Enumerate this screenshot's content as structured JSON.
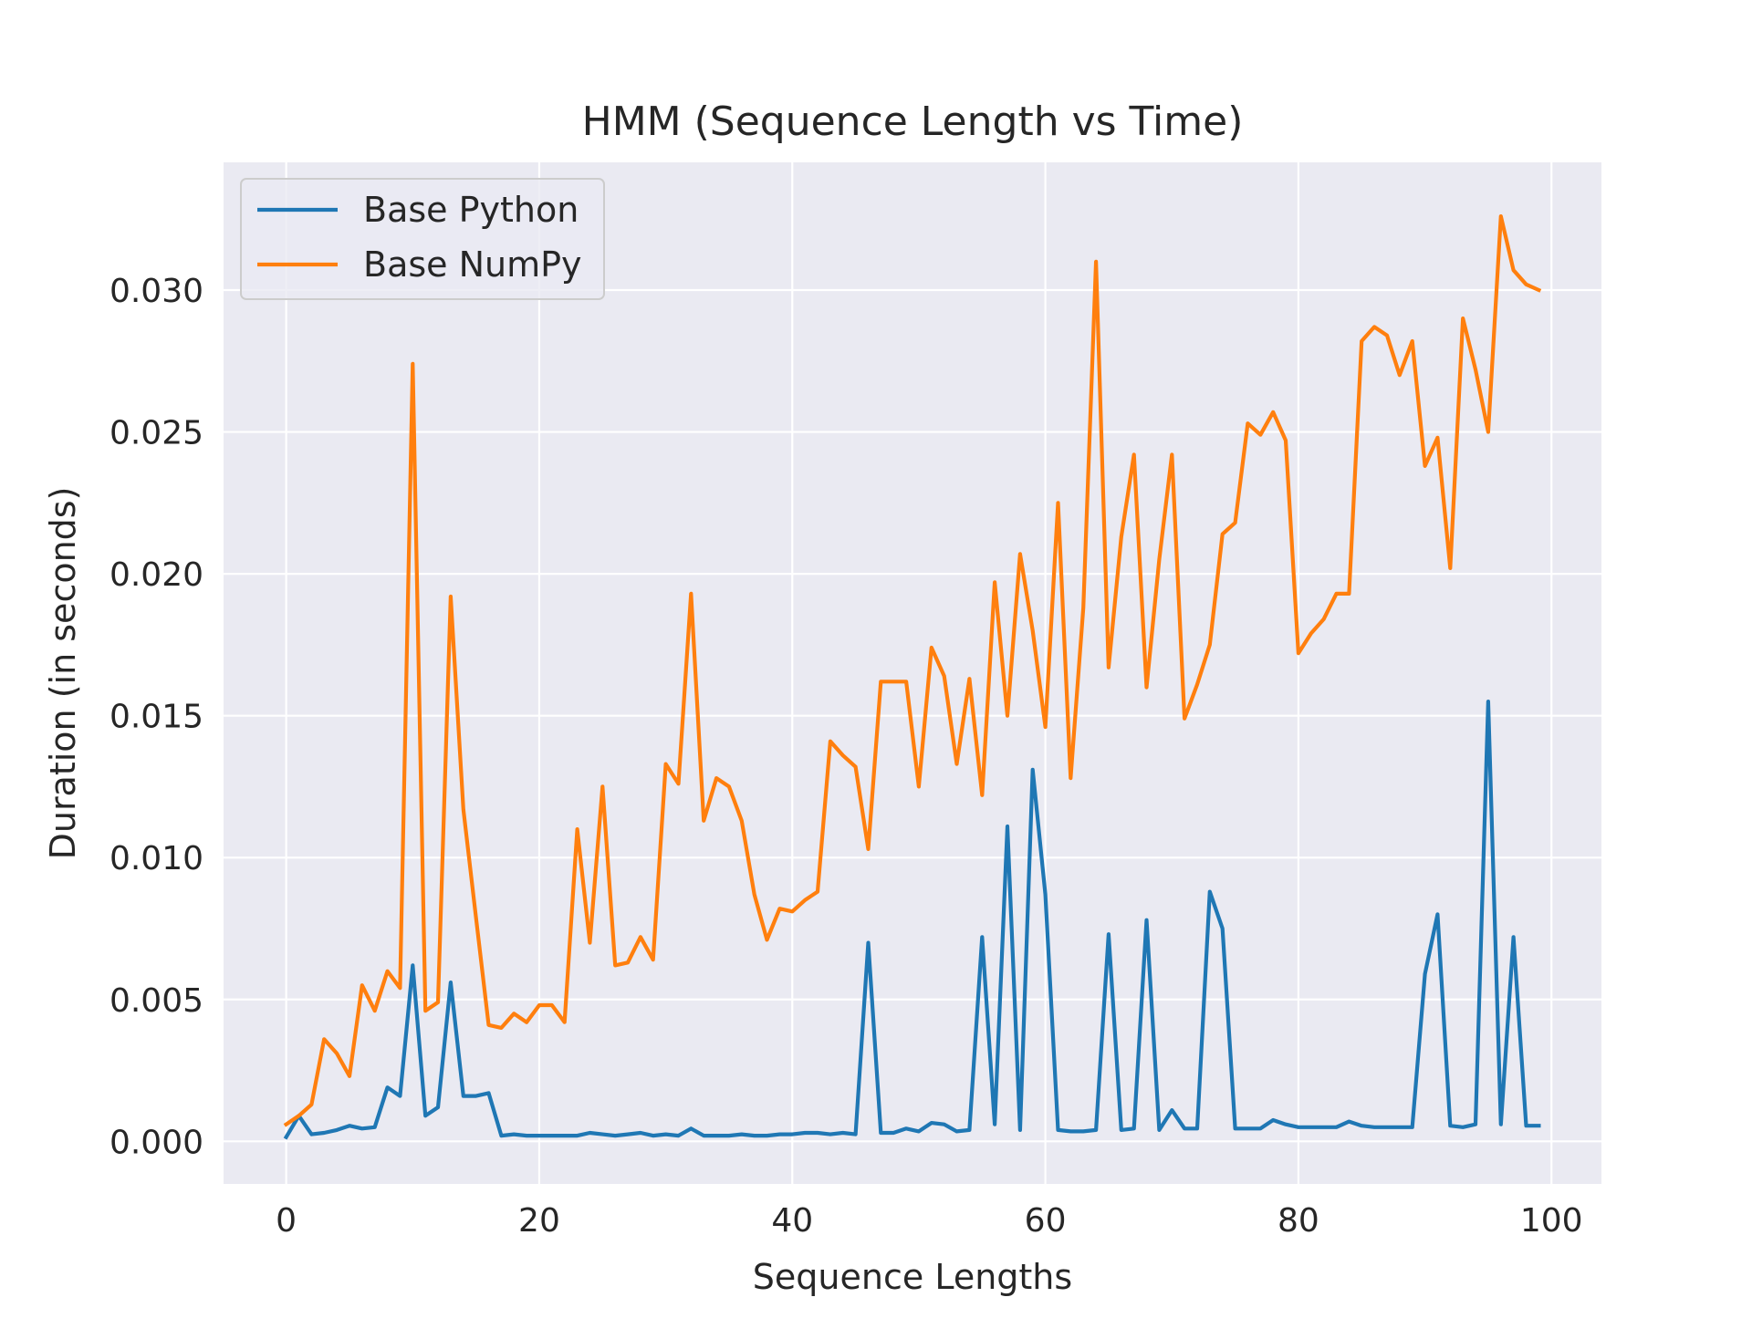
{
  "chart_data": {
    "type": "line",
    "title": "HMM (Sequence Length vs Time)",
    "xlabel": "Sequence Lengths",
    "ylabel": "Duration (in seconds)",
    "xlim": [
      -4.95,
      103.95
    ],
    "ylim": [
      -0.0015,
      0.0345
    ],
    "x_ticks": [
      0,
      20,
      40,
      60,
      80,
      100
    ],
    "x_tick_labels": [
      "0",
      "20",
      "40",
      "60",
      "80",
      "100"
    ],
    "y_ticks": [
      0.0,
      0.005,
      0.01,
      0.015,
      0.02,
      0.025,
      0.03
    ],
    "y_tick_labels": [
      "0.000",
      "0.005",
      "0.010",
      "0.015",
      "0.020",
      "0.025",
      "0.030"
    ],
    "grid": true,
    "legend_position": "upper-left",
    "colors": {
      "plot_bg": "#eaeaf2",
      "grid": "#ffffff",
      "legend_border": "#cccccc"
    },
    "x": [
      0,
      1,
      2,
      3,
      4,
      5,
      6,
      7,
      8,
      9,
      10,
      11,
      12,
      13,
      14,
      15,
      16,
      17,
      18,
      19,
      20,
      21,
      22,
      23,
      24,
      25,
      26,
      27,
      28,
      29,
      30,
      31,
      32,
      33,
      34,
      35,
      36,
      37,
      38,
      39,
      40,
      41,
      42,
      43,
      44,
      45,
      46,
      47,
      48,
      49,
      50,
      51,
      52,
      53,
      54,
      55,
      56,
      57,
      58,
      59,
      60,
      61,
      62,
      63,
      64,
      65,
      66,
      67,
      68,
      69,
      70,
      71,
      72,
      73,
      74,
      75,
      76,
      77,
      78,
      79,
      80,
      81,
      82,
      83,
      84,
      85,
      86,
      87,
      88,
      89,
      90,
      91,
      92,
      93,
      94,
      95,
      96,
      97,
      98,
      99
    ],
    "series": [
      {
        "name": "Base Python",
        "color": "#1f77b4",
        "values": [
          0.00015,
          0.0009,
          0.00025,
          0.0003,
          0.0004,
          0.00055,
          0.00045,
          0.0005,
          0.0019,
          0.0016,
          0.0062,
          0.0009,
          0.0012,
          0.0056,
          0.0016,
          0.0016,
          0.0017,
          0.0002,
          0.00025,
          0.0002,
          0.0002,
          0.0002,
          0.0002,
          0.0002,
          0.0003,
          0.00025,
          0.0002,
          0.00025,
          0.0003,
          0.0002,
          0.00025,
          0.0002,
          0.00045,
          0.0002,
          0.0002,
          0.0002,
          0.00025,
          0.0002,
          0.0002,
          0.00025,
          0.00025,
          0.0003,
          0.0003,
          0.00025,
          0.0003,
          0.00025,
          0.007,
          0.0003,
          0.0003,
          0.00045,
          0.00035,
          0.00065,
          0.0006,
          0.00035,
          0.0004,
          0.0072,
          0.0006,
          0.0111,
          0.0004,
          0.0131,
          0.0087,
          0.0004,
          0.00035,
          0.00035,
          0.0004,
          0.0073,
          0.0004,
          0.00045,
          0.0078,
          0.0004,
          0.0011,
          0.00045,
          0.00045,
          0.0088,
          0.0075,
          0.00045,
          0.00045,
          0.00045,
          0.00075,
          0.0006,
          0.0005,
          0.0005,
          0.0005,
          0.0005,
          0.0007,
          0.00055,
          0.0005,
          0.0005,
          0.0005,
          0.0005,
          0.0059,
          0.008,
          0.00055,
          0.0005,
          0.0006,
          0.0155,
          0.0006,
          0.0072,
          0.00055,
          0.00055
        ]
      },
      {
        "name": "Base NumPy",
        "color": "#ff7f0e",
        "values": [
          0.0006,
          0.0009,
          0.0013,
          0.0036,
          0.0031,
          0.0023,
          0.0055,
          0.0046,
          0.006,
          0.0054,
          0.0274,
          0.0046,
          0.0049,
          0.0192,
          0.0117,
          0.0079,
          0.0041,
          0.004,
          0.0045,
          0.0042,
          0.0048,
          0.0048,
          0.0042,
          0.011,
          0.007,
          0.0125,
          0.0062,
          0.0063,
          0.0072,
          0.0064,
          0.0133,
          0.0126,
          0.0193,
          0.0113,
          0.0128,
          0.0125,
          0.0113,
          0.0087,
          0.0071,
          0.0082,
          0.0081,
          0.0085,
          0.0088,
          0.0141,
          0.0136,
          0.0132,
          0.0103,
          0.0162,
          0.0162,
          0.0162,
          0.0125,
          0.0174,
          0.0164,
          0.0133,
          0.0163,
          0.0122,
          0.0197,
          0.015,
          0.0207,
          0.018,
          0.0146,
          0.0225,
          0.0128,
          0.0188,
          0.031,
          0.0167,
          0.0213,
          0.0242,
          0.016,
          0.0205,
          0.0242,
          0.0149,
          0.0161,
          0.0175,
          0.0214,
          0.0218,
          0.0253,
          0.0249,
          0.0257,
          0.0247,
          0.0172,
          0.0179,
          0.0184,
          0.0193,
          0.0193,
          0.0282,
          0.0287,
          0.0284,
          0.027,
          0.0282,
          0.0238,
          0.0248,
          0.0202,
          0.029,
          0.0272,
          0.025,
          0.0326,
          0.0307,
          0.0302,
          0.03
        ]
      }
    ]
  }
}
